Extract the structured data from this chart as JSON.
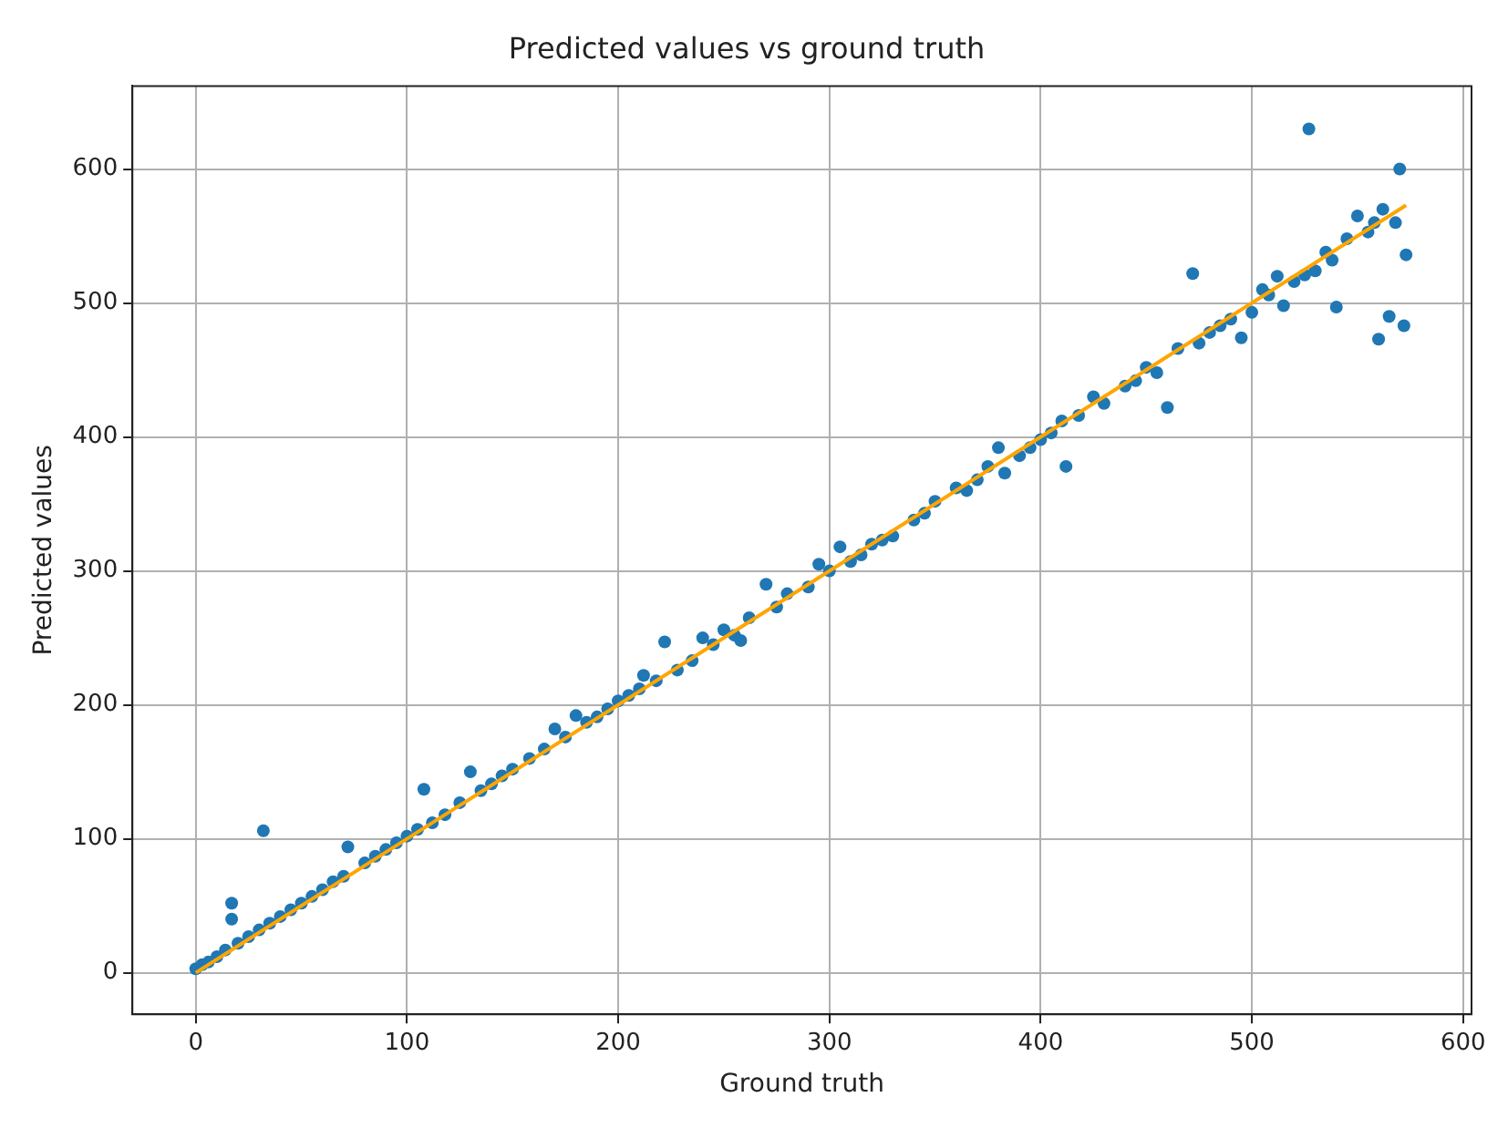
{
  "chart_data": {
    "type": "scatter",
    "title": "Predicted values vs ground truth",
    "xlabel": "Ground truth",
    "ylabel": "Predicted values",
    "xlim": [
      -30,
      604
    ],
    "ylim": [
      -31,
      662
    ],
    "xticks": [
      0,
      100,
      200,
      300,
      400,
      500,
      600
    ],
    "yticks": [
      0,
      100,
      200,
      300,
      400,
      500,
      600
    ],
    "grid": true,
    "marker": "circle",
    "series": [
      {
        "color": "#1f77b4",
        "x": [
          0,
          3,
          6,
          10,
          14,
          17,
          17,
          20,
          25,
          30,
          32,
          35,
          40,
          45,
          50,
          55,
          60,
          65,
          70,
          72,
          80,
          85,
          90,
          95,
          100,
          105,
          108,
          112,
          118,
          125,
          130,
          135,
          140,
          145,
          150,
          158,
          165,
          170,
          175,
          180,
          185,
          190,
          195,
          200,
          205,
          210,
          212,
          218,
          222,
          228,
          235,
          240,
          245,
          250,
          255,
          258,
          262,
          270,
          275,
          280,
          290,
          295,
          300,
          305,
          310,
          315,
          320,
          325,
          330,
          340,
          345,
          350,
          360,
          365,
          370,
          375,
          380,
          383,
          390,
          395,
          400,
          405,
          410,
          412,
          418,
          425,
          430,
          440,
          445,
          450,
          455,
          460,
          465,
          472,
          475,
          480,
          485,
          490,
          495,
          500,
          505,
          508,
          512,
          515,
          520,
          525,
          527,
          530,
          535,
          538,
          540,
          545,
          550,
          555,
          558,
          560,
          562,
          565,
          568,
          570,
          572,
          573
        ],
        "values": [
          3,
          6,
          8,
          12,
          17,
          52,
          40,
          22,
          27,
          32,
          106,
          37,
          42,
          47,
          52,
          57,
          62,
          68,
          72,
          94,
          82,
          87,
          92,
          97,
          102,
          107,
          137,
          112,
          118,
          127,
          150,
          136,
          141,
          147,
          152,
          160,
          167,
          182,
          176,
          192,
          187,
          191,
          197,
          203,
          207,
          212,
          222,
          218,
          247,
          226,
          233,
          250,
          245,
          256,
          252,
          248,
          265,
          290,
          273,
          283,
          288,
          305,
          300,
          318,
          307,
          312,
          320,
          323,
          326,
          338,
          343,
          352,
          362,
          360,
          368,
          378,
          392,
          373,
          386,
          392,
          398,
          403,
          412,
          378,
          416,
          430,
          425,
          438,
          442,
          452,
          448,
          422,
          466,
          522,
          470,
          478,
          483,
          488,
          474,
          493,
          510,
          506,
          520,
          498,
          516,
          521,
          630,
          524,
          538,
          532,
          497,
          548,
          565,
          553,
          560,
          473,
          570,
          490,
          560,
          600,
          483,
          536
        ]
      },
      {
        "type": "line",
        "color": "#ffa500",
        "marker": "none",
        "x": [
          0,
          573
        ],
        "values": [
          0,
          573
        ]
      }
    ]
  }
}
